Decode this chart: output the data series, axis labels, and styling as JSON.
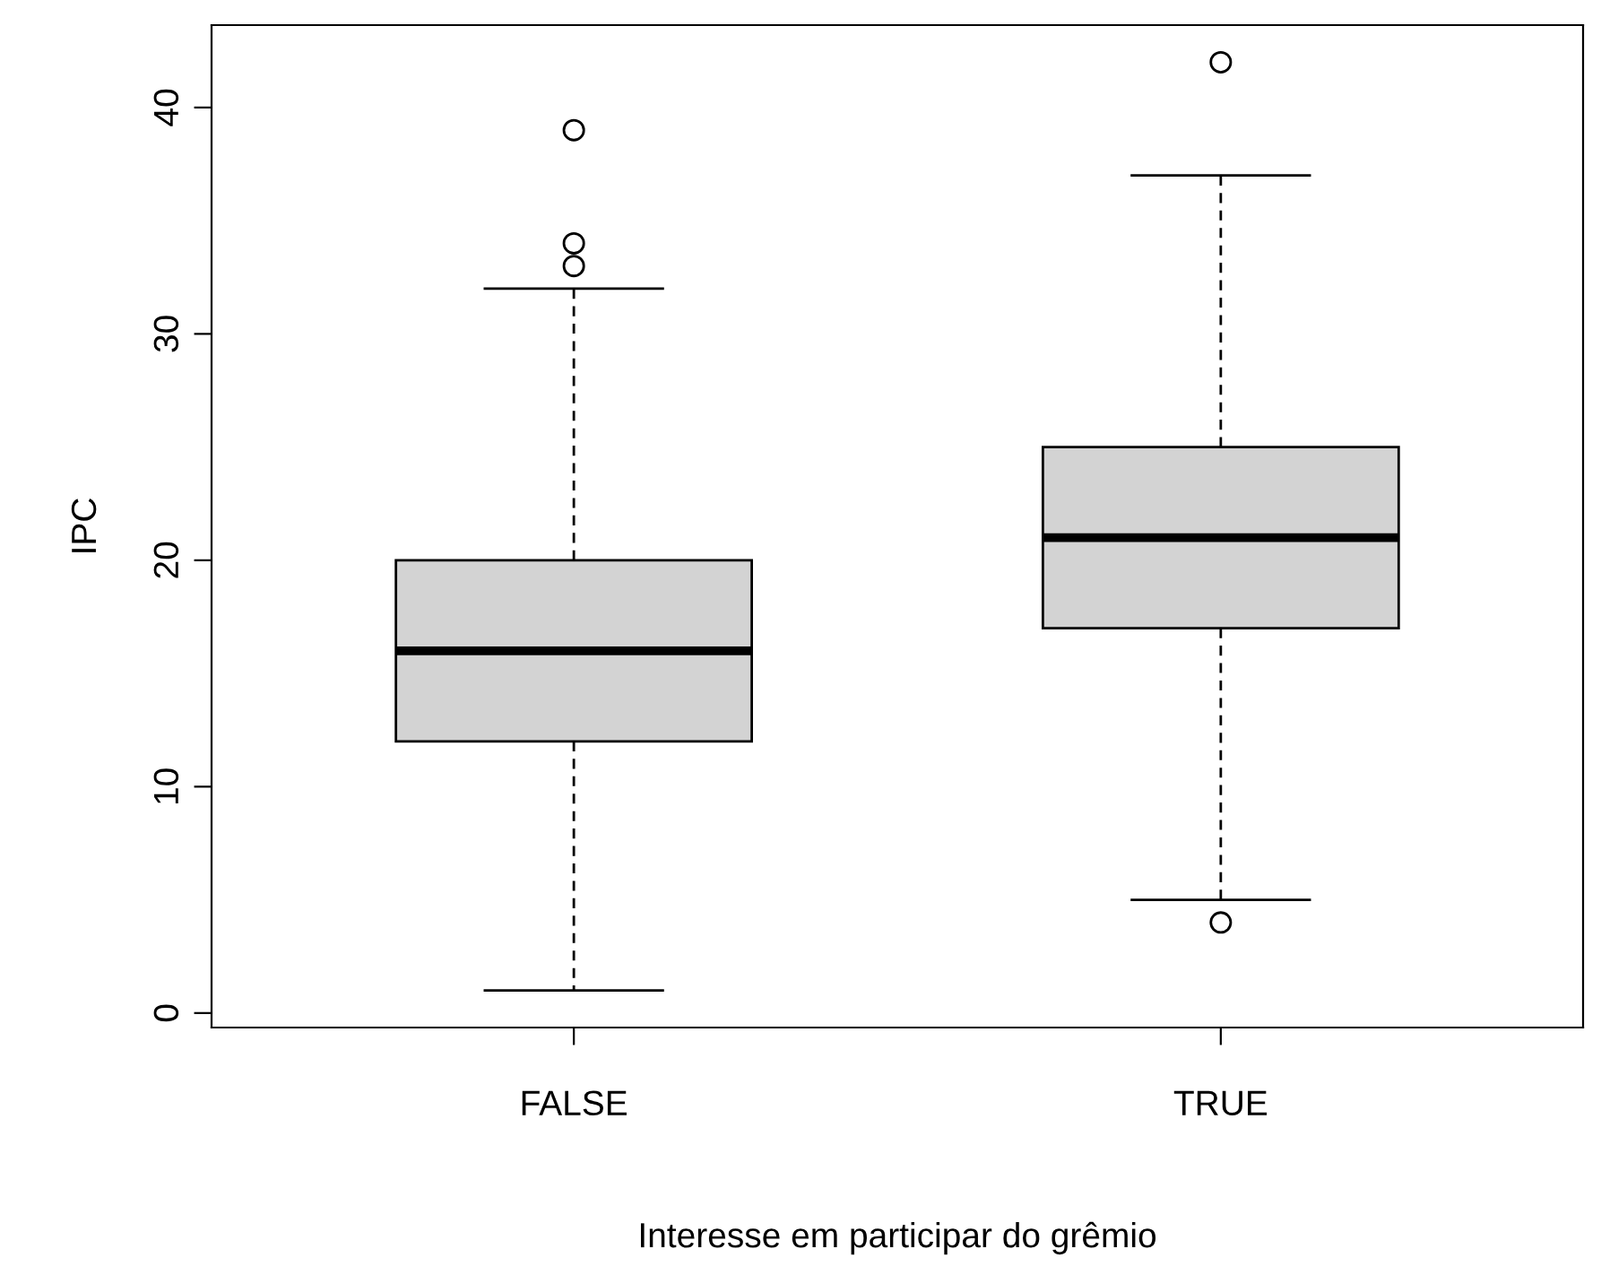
{
  "chart_data": {
    "type": "box",
    "xlabel": "Interesse em participar do grêmio",
    "ylabel": "IPC",
    "categories": [
      "FALSE",
      "TRUE"
    ],
    "boxes": [
      {
        "low": 1,
        "q1": 12,
        "median": 16,
        "q3": 20,
        "high": 32,
        "outliers": [
          33,
          34,
          39
        ]
      },
      {
        "low": 5,
        "q1": 17,
        "median": 21,
        "q3": 25,
        "high": 37,
        "outliers": [
          4,
          42
        ]
      }
    ],
    "color": "#d3d3d3",
    "ylim": [
      -0.64,
      43.64
    ],
    "yticks": [
      0,
      10,
      20,
      30,
      40
    ],
    "grid": false
  }
}
